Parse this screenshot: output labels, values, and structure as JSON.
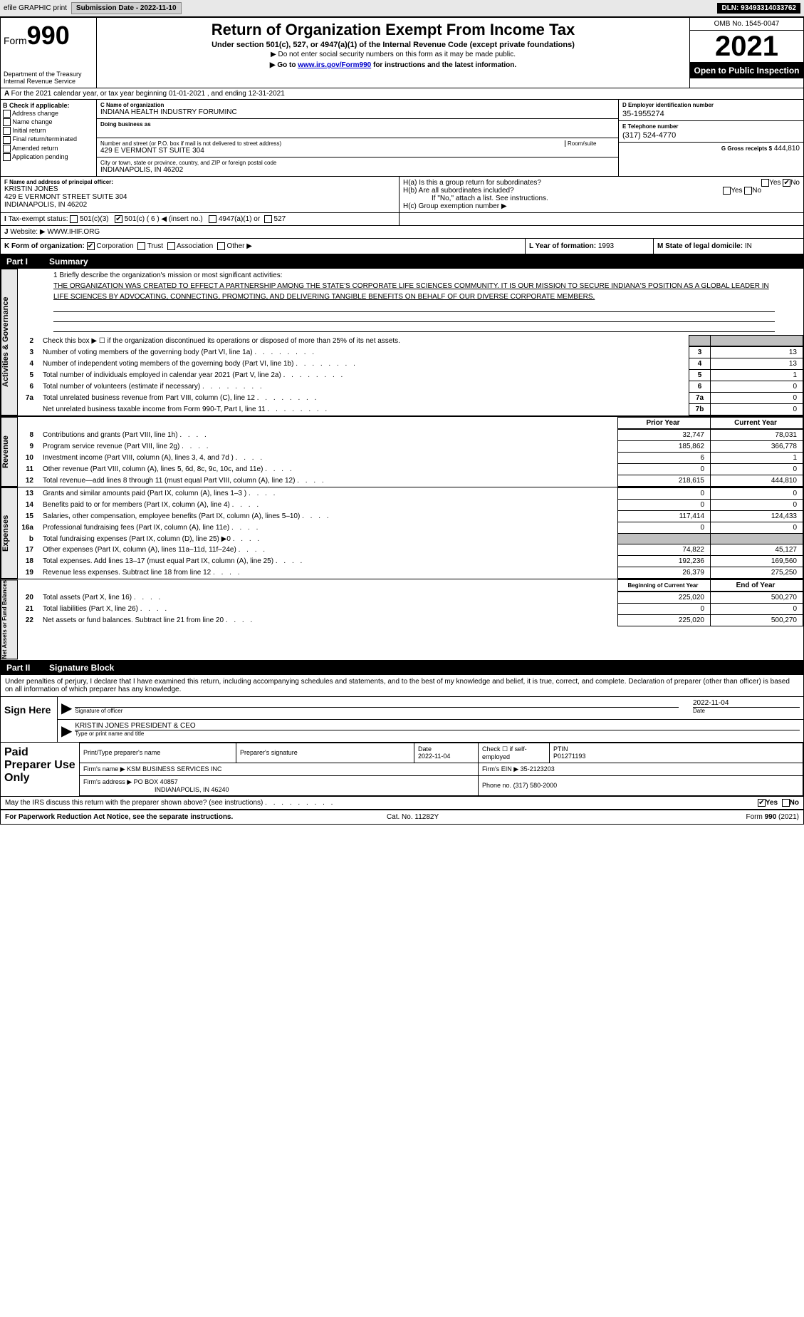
{
  "topbar": {
    "efile": "efile GRAPHIC print",
    "submission": "Submission Date - 2022-11-10",
    "dln": "DLN: 93493314033762"
  },
  "header": {
    "form": "Form",
    "form_no": "990",
    "title": "Return of Organization Exempt From Income Tax",
    "sub1": "Under section 501(c), 527, or 4947(a)(1) of the Internal Revenue Code (except private foundations)",
    "sub2": "▶ Do not enter social security numbers on this form as it may be made public.",
    "sub3_pre": "▶ Go to ",
    "sub3_link": "www.irs.gov/Form990",
    "sub3_post": " for instructions and the latest information.",
    "dept": "Department of the Treasury Internal Revenue Service",
    "omb": "OMB No. 1545-0047",
    "year": "2021",
    "otp": "Open to Public Inspection"
  },
  "A": {
    "text": "For the 2021 calendar year, or tax year beginning 01-01-2021    , and ending 12-31-2021"
  },
  "B": {
    "label": "B Check if applicable:",
    "items": [
      "Address change",
      "Name change",
      "Initial return",
      "Final return/terminated",
      "Amended return",
      "Application pending"
    ]
  },
  "C": {
    "name_lbl": "C Name of organization",
    "name": "INDIANA HEALTH INDUSTRY FORUMINC",
    "dba_lbl": "Doing business as",
    "dba": "",
    "addr_lbl": "Number and street (or P.O. box if mail is not delivered to street address)",
    "room_lbl": "Room/suite",
    "addr": "429 E VERMONT ST SUITE 304",
    "city_lbl": "City or town, state or province, country, and ZIP or foreign postal code",
    "city": "INDIANAPOLIS, IN  46202"
  },
  "D": {
    "lbl": "D Employer identification number",
    "val": "35-1955274"
  },
  "E": {
    "lbl": "E Telephone number",
    "val": "(317) 524-4770"
  },
  "G": {
    "lbl": "G Gross receipts $",
    "val": "444,810"
  },
  "F": {
    "lbl": "F  Name and address of principal officer:",
    "name": "KRISTIN JONES",
    "addr": "429 E VERMONT STREET SUITE 304",
    "city": "INDIANAPOLIS, IN  46202"
  },
  "H": {
    "a_lbl": "H(a)  Is this a group return for subordinates?",
    "a_yes": "Yes",
    "a_no": "No",
    "b_lbl": "H(b)  Are all subordinates included?",
    "b_yes": "Yes",
    "b_no": "No",
    "b_note": "If \"No,\" attach a list. See instructions.",
    "c_lbl": "H(c)  Group exemption number ▶"
  },
  "I": {
    "lbl": "Tax-exempt status:",
    "opts": [
      "501(c)(3)",
      "501(c) ( 6 ) ◀ (insert no.)",
      "4947(a)(1) or",
      "527"
    ]
  },
  "J": {
    "lbl": "Website: ▶",
    "val": "WWW.IHIF.ORG"
  },
  "K": {
    "lbl": "K Form of organization:",
    "opts": [
      "Corporation",
      "Trust",
      "Association",
      "Other ▶"
    ]
  },
  "L": {
    "lbl": "L Year of formation:",
    "val": "1993"
  },
  "M": {
    "lbl": "M State of legal domicile:",
    "val": "IN"
  },
  "part1": {
    "hdr": "Part I",
    "title": "Summary",
    "mission_lbl": "1  Briefly describe the organization's mission or most significant activities:",
    "mission": "THE ORGANIZATION WAS CREATED TO EFFECT A PARTNERSHIP AMONG THE STATE'S CORPORATE LIFE SCIENCES COMMUNITY. IT IS OUR MISSION TO SECURE INDIANA'S POSITION AS A GLOBAL LEADER IN LIFE SCIENCES BY ADVOCATING, CONNECTING, PROMOTING, AND DELIVERING TANGIBLE BENEFITS ON BEHALF OF OUR DIVERSE CORPORATE MEMBERS.",
    "side_ag": "Activities & Governance",
    "line2": "Check this box ▶ ☐  if the organization discontinued its operations or disposed of more than 25% of its net assets.",
    "lines_ag": [
      {
        "n": "3",
        "t": "Number of voting members of the governing body (Part VI, line 1a)",
        "b": "3",
        "v": "13"
      },
      {
        "n": "4",
        "t": "Number of independent voting members of the governing body (Part VI, line 1b)",
        "b": "4",
        "v": "13"
      },
      {
        "n": "5",
        "t": "Total number of individuals employed in calendar year 2021 (Part V, line 2a)",
        "b": "5",
        "v": "1"
      },
      {
        "n": "6",
        "t": "Total number of volunteers (estimate if necessary)",
        "b": "6",
        "v": "0"
      },
      {
        "n": "7a",
        "t": "Total unrelated business revenue from Part VIII, column (C), line 12",
        "b": "7a",
        "v": "0"
      },
      {
        "n": "",
        "t": "Net unrelated business taxable income from Form 990-T, Part I, line 11",
        "b": "7b",
        "v": "0"
      }
    ],
    "side_rev": "Revenue",
    "prior_hdr": "Prior Year",
    "curr_hdr": "Current Year",
    "lines_rev": [
      {
        "n": "8",
        "t": "Contributions and grants (Part VIII, line 1h)",
        "p": "32,747",
        "c": "78,031"
      },
      {
        "n": "9",
        "t": "Program service revenue (Part VIII, line 2g)",
        "p": "185,862",
        "c": "366,778"
      },
      {
        "n": "10",
        "t": "Investment income (Part VIII, column (A), lines 3, 4, and 7d )",
        "p": "6",
        "c": "1"
      },
      {
        "n": "11",
        "t": "Other revenue (Part VIII, column (A), lines 5, 6d, 8c, 9c, 10c, and 11e)",
        "p": "0",
        "c": "0"
      },
      {
        "n": "12",
        "t": "Total revenue—add lines 8 through 11 (must equal Part VIII, column (A), line 12)",
        "p": "218,615",
        "c": "444,810"
      }
    ],
    "side_exp": "Expenses",
    "lines_exp": [
      {
        "n": "13",
        "t": "Grants and similar amounts paid (Part IX, column (A), lines 1–3 )",
        "p": "0",
        "c": "0"
      },
      {
        "n": "14",
        "t": "Benefits paid to or for members (Part IX, column (A), line 4)",
        "p": "0",
        "c": "0"
      },
      {
        "n": "15",
        "t": "Salaries, other compensation, employee benefits (Part IX, column (A), lines 5–10)",
        "p": "117,414",
        "c": "124,433"
      },
      {
        "n": "16a",
        "t": "Professional fundraising fees (Part IX, column (A), line 11e)",
        "p": "0",
        "c": "0"
      },
      {
        "n": "b",
        "t": "Total fundraising expenses (Part IX, column (D), line 25) ▶0",
        "p": "",
        "c": "",
        "shade": true
      },
      {
        "n": "17",
        "t": "Other expenses (Part IX, column (A), lines 11a–11d, 11f–24e)",
        "p": "74,822",
        "c": "45,127"
      },
      {
        "n": "18",
        "t": "Total expenses. Add lines 13–17 (must equal Part IX, column (A), line 25)",
        "p": "192,236",
        "c": "169,560"
      },
      {
        "n": "19",
        "t": "Revenue less expenses. Subtract line 18 from line 12",
        "p": "26,379",
        "c": "275,250"
      }
    ],
    "side_na": "Net Assets or Fund Balances",
    "boy_hdr": "Beginning of Current Year",
    "eoy_hdr": "End of Year",
    "lines_na": [
      {
        "n": "20",
        "t": "Total assets (Part X, line 16)",
        "p": "225,020",
        "c": "500,270"
      },
      {
        "n": "21",
        "t": "Total liabilities (Part X, line 26)",
        "p": "0",
        "c": "0"
      },
      {
        "n": "22",
        "t": "Net assets or fund balances. Subtract line 21 from line 20",
        "p": "225,020",
        "c": "500,270"
      }
    ]
  },
  "part2": {
    "hdr": "Part II",
    "title": "Signature Block",
    "decl": "Under penalties of perjury, I declare that I have examined this return, including accompanying schedules and statements, and to the best of my knowledge and belief, it is true, correct, and complete. Declaration of preparer (other than officer) is based on all information of which preparer has any knowledge."
  },
  "sign": {
    "here_lbl": "Sign Here",
    "sig_lbl": "Signature of officer",
    "date_lbl": "Date",
    "date": "2022-11-04",
    "name": "KRISTIN JONES  PRESIDENT & CEO",
    "name_lbl": "Type or print name and title"
  },
  "paid": {
    "lbl": "Paid Preparer Use Only",
    "h1": "Print/Type preparer's name",
    "h2": "Preparer's signature",
    "h3": "Date",
    "h3v": "2022-11-04",
    "h4": "Check ☐ if self-employed",
    "h5": "PTIN",
    "h5v": "P01271193",
    "firm_lbl": "Firm's name    ▶",
    "firm": "KSM BUSINESS SERVICES INC",
    "ein_lbl": "Firm's EIN ▶",
    "ein": "35-2123203",
    "addr_lbl": "Firm's address ▶",
    "addr": "PO BOX 40857",
    "addr2": "INDIANAPOLIS, IN  46240",
    "phone_lbl": "Phone no.",
    "phone": "(317) 580-2000"
  },
  "discuss": {
    "text": "May the IRS discuss this return with the preparer shown above? (see instructions)",
    "yes": "Yes",
    "no": "No"
  },
  "footer": {
    "left": "For Paperwork Reduction Act Notice, see the separate instructions.",
    "mid": "Cat. No. 11282Y",
    "right": "Form 990 (2021)"
  },
  "colors": {
    "black": "#000000",
    "bg": "#ffffff",
    "shade": "#c0c0c0",
    "link": "#0000cc"
  }
}
